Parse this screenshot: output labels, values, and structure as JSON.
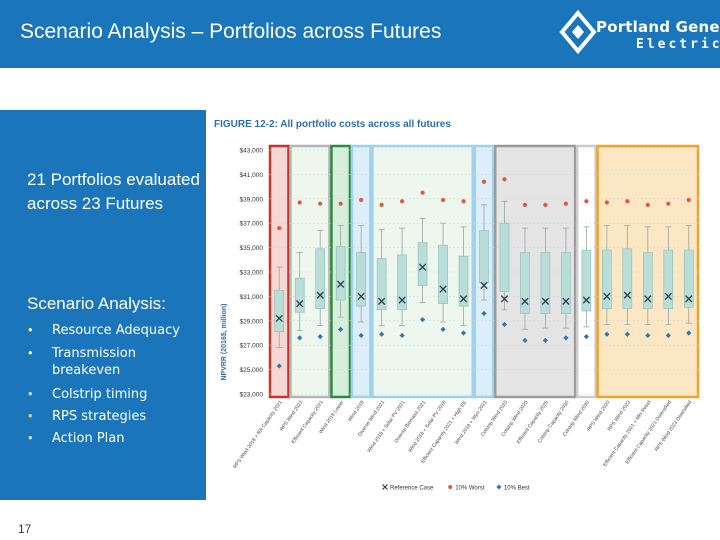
{
  "header": {
    "title": "Scenario Analysis – Portfolios across Futures",
    "logo": {
      "line1": "Portland General",
      "line2": "Electric"
    }
  },
  "left_panel": {
    "heading": "21 Portfolios evaluated across 23 Futures",
    "subheading": "Scenario Analysis:",
    "bullets": [
      {
        "text": "Resource Adequacy",
        "color": "#f6f3a0"
      },
      {
        "text": "Transmission breakeven",
        "color": "#f6f3a0"
      },
      {
        "text": "Colstrip timing",
        "color": "#d8d8d8"
      },
      {
        "text": "RPS strategies",
        "color": "#f6c63c"
      },
      {
        "text": "Action Plan",
        "color": "#d8d8d8"
      }
    ]
  },
  "page_number": "17",
  "chart_data": {
    "type": "box",
    "title": "FIGURE 12-2: All portfolio costs across all futures",
    "ylabel": "NPVRR (2016$, million)",
    "ylim": [
      23000,
      43000
    ],
    "yticks": [
      "$23,000",
      "$25,000",
      "$27,000",
      "$29,000",
      "$31,000",
      "$33,000",
      "$35,000",
      "$37,000",
      "$39,000",
      "$41,000",
      "$43,000"
    ],
    "categories": [
      "RPS Wind 2018 + RA Capacity 2021",
      "RPS Wind 2023",
      "Efficient Capacity 2021",
      "Wind 2018 Lower",
      "Wind 2018",
      "Diverse Wind 2021",
      "Wind 2018 + Solar PV 2021",
      "Diverse Biomass 2021",
      "Wind 2018 + Solar PV 2018",
      "Efficient Capacity 2021 + High EE",
      "Wind 2018 + Wyo 2021",
      "Colstrip Wind 2020",
      "Colstrip Wind 2025",
      "Efficient Capacity 2025",
      "Colstrip Capacity 2030",
      "Colstrip Wind 2030",
      "RPS Wind 2020",
      "RPS Wind 2023",
      "Efficient Capacity 2021 + Mkt Resid",
      "Efficient Capacity 2021 Diversified",
      "RPS Wind 2023 Diversified"
    ],
    "series": [
      {
        "name": "Reference Case",
        "values": [
          29200,
          30400,
          31100,
          32000,
          31000,
          30600,
          30700,
          33400,
          31600,
          30800,
          31900,
          30800,
          30600,
          30600,
          30600,
          30700,
          31000,
          31100,
          30800,
          31000,
          30800
        ]
      },
      {
        "name": "10% Worst",
        "values": [
          36600,
          38700,
          38600,
          38600,
          38900,
          38500,
          38800,
          39500,
          38900,
          38800,
          40400,
          40600,
          38500,
          38500,
          38600,
          38800,
          38700,
          38800,
          38500,
          38600,
          38900
        ]
      },
      {
        "name": "10% Best",
        "values": [
          25300,
          27600,
          27700,
          28300,
          27800,
          27900,
          27800,
          29100,
          28300,
          28000,
          29600,
          28700,
          27400,
          27400,
          27600,
          27700,
          27900,
          27900,
          27800,
          27800,
          28000
        ]
      }
    ],
    "boxes": [
      {
        "lo": 26800,
        "q1": 28100,
        "q3": 31500,
        "hi": 33400
      },
      {
        "lo": 28200,
        "q1": 29700,
        "q3": 32500,
        "hi": 34600
      },
      {
        "lo": 28600,
        "q1": 30000,
        "q3": 34900,
        "hi": 36400
      },
      {
        "lo": 29300,
        "q1": 30700,
        "q3": 35100,
        "hi": 36800
      },
      {
        "lo": 28900,
        "q1": 30200,
        "q3": 34600,
        "hi": 36800
      },
      {
        "lo": 28600,
        "q1": 29900,
        "q3": 34100,
        "hi": 36500
      },
      {
        "lo": 28600,
        "q1": 29900,
        "q3": 34400,
        "hi": 36600
      },
      {
        "lo": 30500,
        "q1": 31900,
        "q3": 35400,
        "hi": 37400
      },
      {
        "lo": 28900,
        "q1": 30400,
        "q3": 35200,
        "hi": 37000
      },
      {
        "lo": 28600,
        "q1": 30200,
        "q3": 34300,
        "hi": 36700
      },
      {
        "lo": 30700,
        "q1": 32100,
        "q3": 36400,
        "hi": 38500
      },
      {
        "lo": 29900,
        "q1": 31400,
        "q3": 37000,
        "hi": 38800
      },
      {
        "lo": 28300,
        "q1": 29600,
        "q3": 34600,
        "hi": 36600
      },
      {
        "lo": 28400,
        "q1": 29600,
        "q3": 34600,
        "hi": 36600
      },
      {
        "lo": 28400,
        "q1": 29600,
        "q3": 34600,
        "hi": 36600
      },
      {
        "lo": 28500,
        "q1": 29800,
        "q3": 34800,
        "hi": 36700
      },
      {
        "lo": 28700,
        "q1": 30000,
        "q3": 34800,
        "hi": 36800
      },
      {
        "lo": 28700,
        "q1": 30000,
        "q3": 34900,
        "hi": 36800
      },
      {
        "lo": 28700,
        "q1": 30000,
        "q3": 34600,
        "hi": 36700
      },
      {
        "lo": 28700,
        "q1": 30000,
        "q3": 34800,
        "hi": 36700
      },
      {
        "lo": 28800,
        "q1": 30100,
        "q3": 34800,
        "hi": 36800
      }
    ],
    "highlight_groups": [
      {
        "from": 0,
        "to": 1,
        "fill": "#f6d7d3",
        "stroke": "#c0392b"
      },
      {
        "from": 1,
        "to": 3,
        "fill": "#eef7ee",
        "stroke": "#b5b5b5"
      },
      {
        "from": 3,
        "to": 4,
        "fill": "#d6eedc",
        "stroke": "#2e8b3e"
      },
      {
        "from": 4,
        "to": 5,
        "fill": "#dceef9",
        "stroke": "#9ed1ef"
      },
      {
        "from": 5,
        "to": 10,
        "fill": "#eef7ee",
        "stroke": "#9ed1ef"
      },
      {
        "from": 10,
        "to": 11,
        "fill": "#dceef9",
        "stroke": "#9ed1ef"
      },
      {
        "from": 11,
        "to": 15,
        "fill": "#e4e4e4",
        "stroke": "#9a9a9a"
      },
      {
        "from": 15,
        "to": 16,
        "fill": "#ffffff",
        "stroke": "#cccccc"
      },
      {
        "from": 16,
        "to": 21,
        "fill": "#fbe7c4",
        "stroke": "#f0a22a"
      }
    ],
    "legend": {
      "position": "bottom",
      "entries": [
        "Reference Case",
        "10% Worst",
        "10% Best"
      ]
    },
    "colors": {
      "box": "#b9ddd7",
      "box_stroke": "#8bbcb5",
      "reference": "#2f3e4e",
      "worst": "#e4573c",
      "best": "#2a78b6"
    }
  }
}
